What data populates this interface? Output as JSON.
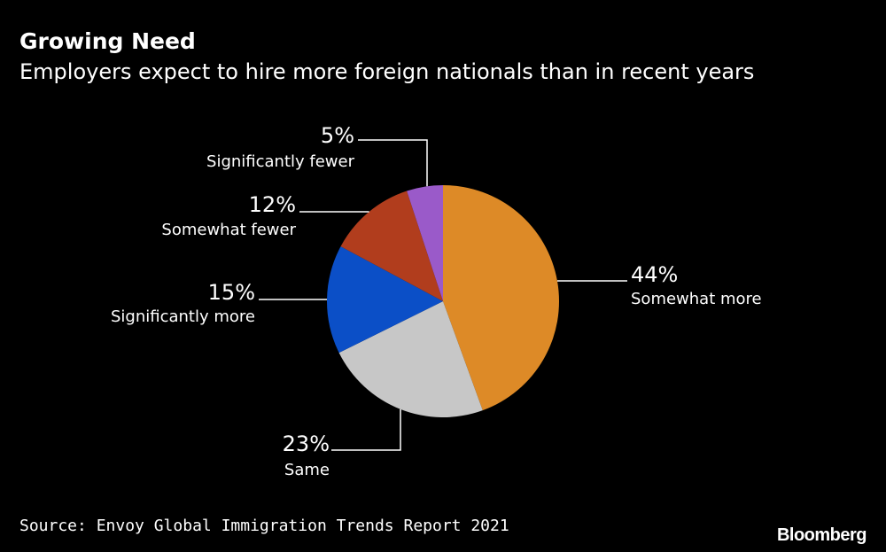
{
  "header": {
    "title": "Growing Need",
    "subtitle": "Employers expect to hire more foreign nationals than in recent years"
  },
  "chart_data": {
    "type": "pie",
    "title": "Growing Need",
    "subtitle": "Employers expect to hire more foreign nationals than in recent years",
    "slices": [
      {
        "label": "Somewhat more",
        "value": 44,
        "value_label": "44%",
        "color": "#dd8a27"
      },
      {
        "label": "Same",
        "value": 23,
        "value_label": "23%",
        "color": "#c7c7c7"
      },
      {
        "label": "Significantly more",
        "value": 15,
        "value_label": "15%",
        "color": "#0b4fc7"
      },
      {
        "label": "Somewhat fewer",
        "value": 12,
        "value_label": "12%",
        "color": "#b13d1d"
      },
      {
        "label": "Significantly fewer",
        "value": 5,
        "value_label": "5%",
        "color": "#9a5ac9"
      }
    ]
  },
  "footer": {
    "source": "Source: Envoy Global Immigration Trends Report 2021",
    "logo": "Bloomberg"
  }
}
